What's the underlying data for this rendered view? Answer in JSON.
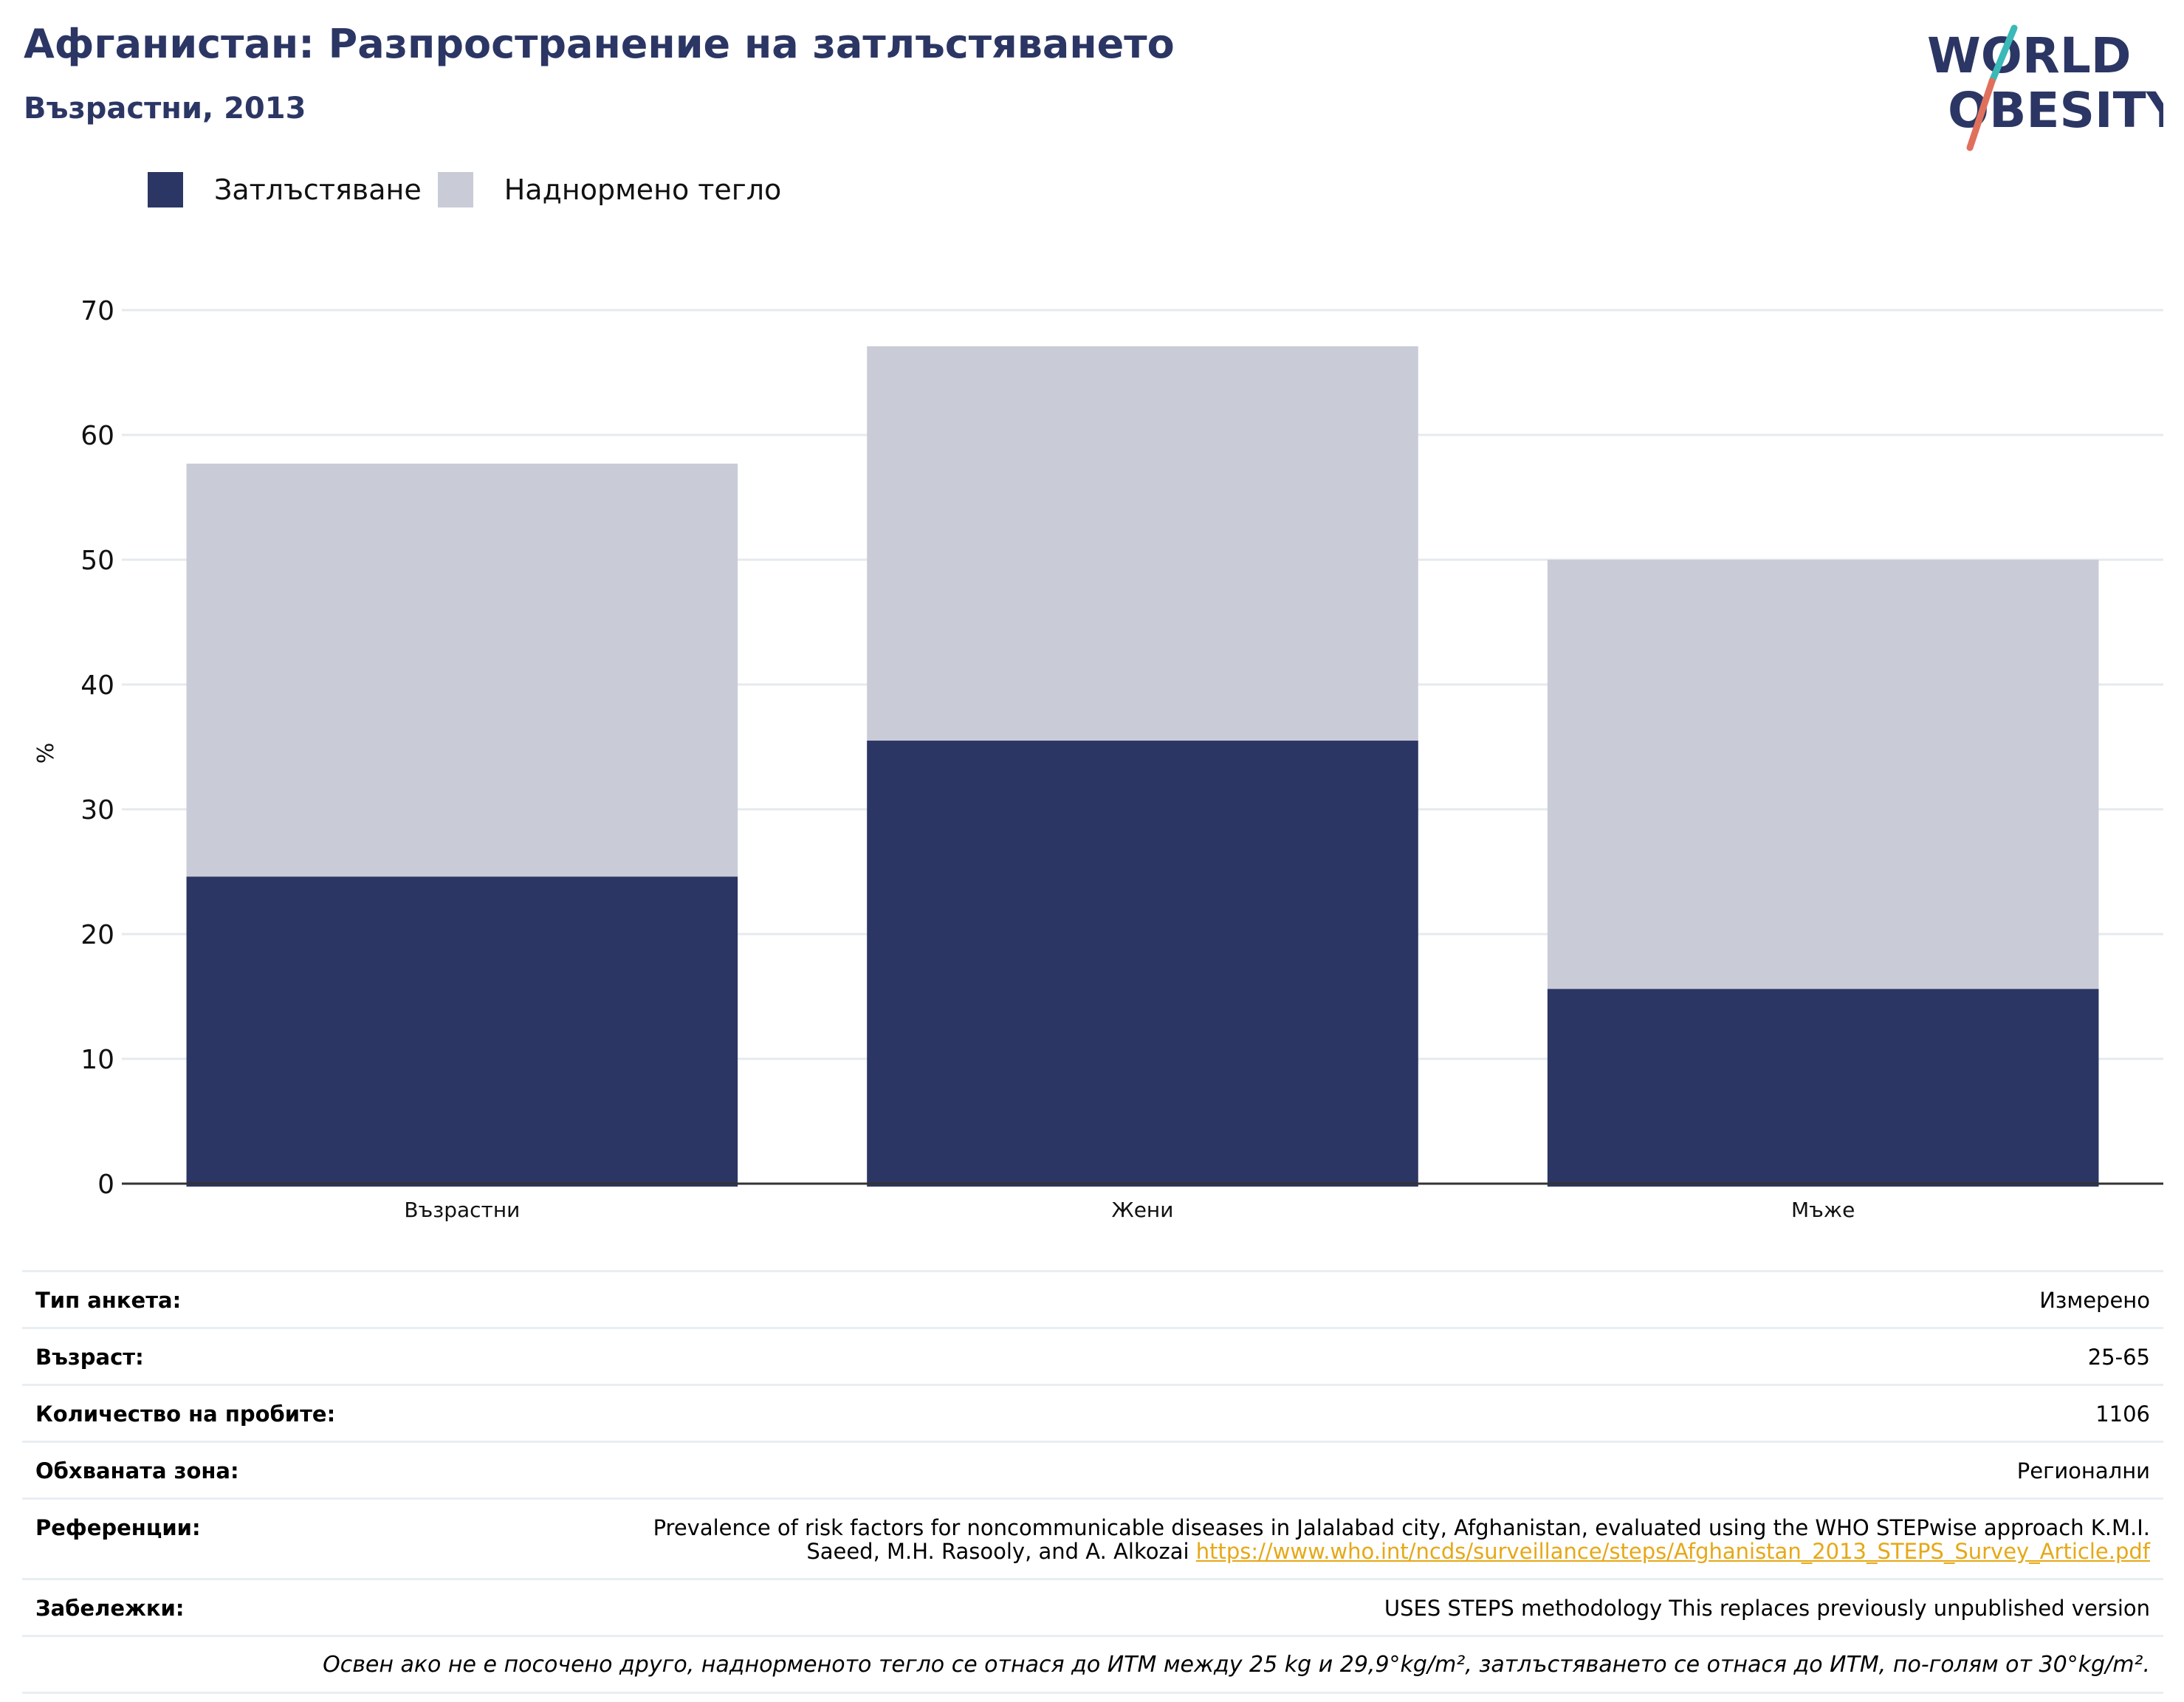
{
  "header": {
    "title": "Афганистан: Разпространение на затлъстяването",
    "subtitle": "Възрастни, 2013"
  },
  "logo": {
    "line1": "WORLD",
    "line2": "OBESITY",
    "accent_teal": "#3bb8b8",
    "accent_coral": "#e0705c"
  },
  "colors": {
    "obesity": "#2b3664",
    "overweight": "#c9cbd6",
    "grid": "#e6e9ee",
    "text_dark": "#2b3664"
  },
  "legend": [
    {
      "label": "Затлъстяване",
      "color": "#2b3664"
    },
    {
      "label": "Наднормено тегло",
      "color": "#c9cbd6"
    }
  ],
  "chart_data": {
    "type": "bar",
    "stacked": false,
    "overlapping": true,
    "categories": [
      "Възрастни",
      "Жени",
      "Мъже"
    ],
    "series": [
      {
        "name": "Наднормено тегло",
        "values": [
          57.7,
          67.1,
          50.0
        ]
      },
      {
        "name": "Затлъстяване",
        "values": [
          24.6,
          35.5,
          15.6
        ]
      }
    ],
    "ylabel": "%",
    "ylim": [
      0,
      70
    ],
    "yticks": [
      0,
      10,
      20,
      30,
      40,
      50,
      60,
      70
    ],
    "grid": true,
    "legend_position": "top-left"
  },
  "info": {
    "survey_type_label": "Тип анкета:",
    "survey_type_value": "Измерено",
    "age_label": "Възраст:",
    "age_value": "25-65",
    "sample_label": "Количество на пробите:",
    "sample_value": "1106",
    "area_label": "Обхваната зона:",
    "area_value": "Регионални",
    "references_label": "Референции:",
    "references_text_1": "Prevalence of risk factors for noncommunicable diseases in Jalalabad city, Afghanistan, evaluated using the WHO STEPwise approach K.M.I.",
    "references_text_2": "Saeed, M.H. Rasooly, and A. Alkozai",
    "references_link": "https://www.who.int/ncds/surveillance/steps/Afghanistan_2013_STEPS_Survey_Article.pdf",
    "notes_label": "Забележки:",
    "notes_value": "USES STEPS methodology This replaces previously unpublished version",
    "footnote": "Освен ако не е посочено друго, наднорменото тегло се отнася до ИТМ между 25 kg и 29,9°kg/m², затлъстяването се отнася до ИТМ, по-голям от 30°kg/m²."
  }
}
